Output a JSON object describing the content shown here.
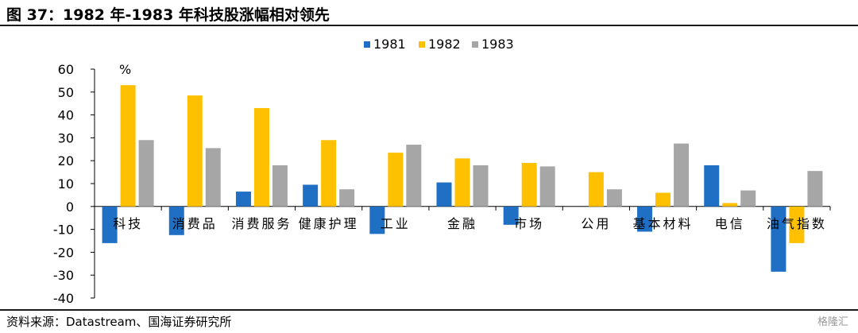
{
  "title": "图 37：1982 年-1983 年科技股涨幅相对领先",
  "source": "资料来源：Datastream、国海证券研究所",
  "watermark": "格隆汇",
  "colors": {
    "s1981": "#1f6fc5",
    "s1982": "#ffc000",
    "s1983": "#a6a6a6",
    "axis": "#000000"
  },
  "chart_data": {
    "type": "bar",
    "title": "",
    "ylabel": "%",
    "xlabel": "",
    "ylim": [
      -40,
      60
    ],
    "yticks": [
      60,
      50,
      40,
      30,
      20,
      10,
      0,
      -10,
      -20,
      -30,
      -40
    ],
    "legend_position": "top-center",
    "grid": false,
    "categories": [
      "科技",
      "消费品",
      "消费服务",
      "健康护理",
      "工业",
      "金融",
      "市场",
      "公用",
      "基本材料",
      "电信",
      "油气指数"
    ],
    "series": [
      {
        "name": "1981",
        "values": [
          -16,
          -12.5,
          6.5,
          9.5,
          -12,
          10.5,
          -8,
          0,
          -11,
          18,
          -28.5
        ]
      },
      {
        "name": "1982",
        "values": [
          53,
          48.5,
          43,
          29,
          23.5,
          21,
          19,
          15,
          6,
          1.5,
          -16
        ]
      },
      {
        "name": "1983",
        "values": [
          29,
          25.5,
          18,
          7.5,
          27,
          18,
          17.5,
          7.5,
          27.5,
          7,
          15.5
        ]
      }
    ]
  }
}
